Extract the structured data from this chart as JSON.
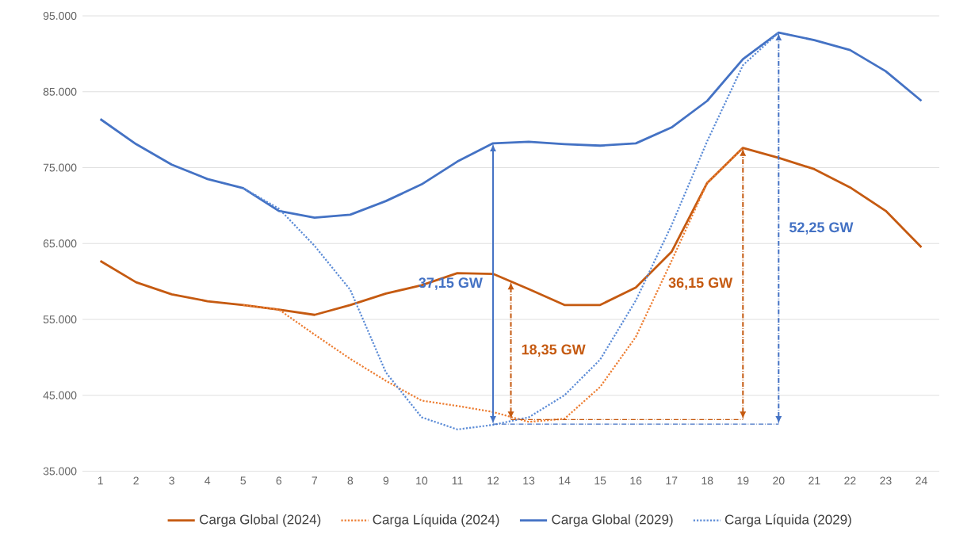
{
  "chart_data": {
    "type": "line",
    "x": [
      1,
      2,
      3,
      4,
      5,
      6,
      7,
      8,
      9,
      10,
      11,
      12,
      13,
      14,
      15,
      16,
      17,
      18,
      19,
      20,
      21,
      22,
      23,
      24
    ],
    "xlim": [
      0.5,
      24.5
    ],
    "xticks": [
      1,
      2,
      3,
      4,
      5,
      6,
      7,
      8,
      9,
      10,
      11,
      12,
      13,
      14,
      15,
      16,
      17,
      18,
      19,
      20,
      21,
      22,
      23,
      24
    ],
    "ylim": [
      35000,
      95000
    ],
    "yticks": [
      {
        "value": 35000,
        "label": "35.000"
      },
      {
        "value": 45000,
        "label": "45.000"
      },
      {
        "value": 55000,
        "label": "55.000"
      },
      {
        "value": 65000,
        "label": "65.000"
      },
      {
        "value": 75000,
        "label": "75.000"
      },
      {
        "value": 85000,
        "label": "85.000"
      },
      {
        "value": 95000,
        "label": "95.000"
      }
    ],
    "grid": "y",
    "legend": "bottom",
    "marker": "none",
    "series": [
      {
        "name": "Carga Global (2024)",
        "color": "#c55a11",
        "line_style": "solid",
        "values": [
          62700,
          59900,
          58300,
          57400,
          56900,
          56300,
          55600,
          56900,
          58400,
          59500,
          61100,
          61000,
          59000,
          56900,
          56900,
          59200,
          63900,
          73000,
          77600,
          76300,
          74800,
          72400,
          69300,
          64500
        ]
      },
      {
        "name": "Carga Líquida (2024)",
        "color": "#ed7d31",
        "line_style": "dotted",
        "values": [
          null,
          null,
          null,
          null,
          56900,
          56300,
          53000,
          49800,
          46900,
          44300,
          43600,
          42800,
          41500,
          41900,
          46100,
          52700,
          62700,
          73000,
          77600,
          null,
          null,
          null,
          null,
          null
        ]
      },
      {
        "name": "Carga Global (2029)",
        "color": "#4472c4",
        "line_style": "solid",
        "values": [
          81400,
          78100,
          75400,
          73500,
          72300,
          69300,
          68400,
          68800,
          70600,
          72800,
          75800,
          78200,
          78400,
          78100,
          77900,
          78200,
          80300,
          83800,
          89300,
          92800,
          91800,
          90500,
          87700,
          83800
        ]
      },
      {
        "name": "Carga Líquida (2029)",
        "color": "#5b8bd6",
        "line_style": "dotted",
        "values": [
          null,
          null,
          null,
          null,
          72300,
          69600,
          64700,
          58900,
          48000,
          42100,
          40500,
          41100,
          42100,
          45000,
          49700,
          57500,
          67400,
          78500,
          88500,
          92800,
          null,
          null,
          null,
          null
        ]
      }
    ],
    "ref_lines": [
      {
        "axis": "x",
        "value": 12,
        "label": "37,15 GW",
        "color": "#4472c4",
        "line_style": "solid"
      },
      {
        "axis": "x",
        "value": 12.5,
        "label": "18,35 GW",
        "color": "#c55a11",
        "line_style": "dashed"
      },
      {
        "axis": "x",
        "value": 19,
        "label": "36,15 GW",
        "color": "#c55a11",
        "line_style": "dashed"
      },
      {
        "axis": "x",
        "value": 20,
        "label": "52,25 GW",
        "color": "#4472c4",
        "line_style": "dashed"
      },
      {
        "axis": "y",
        "value": 41800,
        "color": "#c55a11",
        "line_style": "dashed"
      },
      {
        "axis": "y",
        "value": 41200,
        "color": "#4472c4",
        "line_style": "dashed"
      }
    ]
  }
}
